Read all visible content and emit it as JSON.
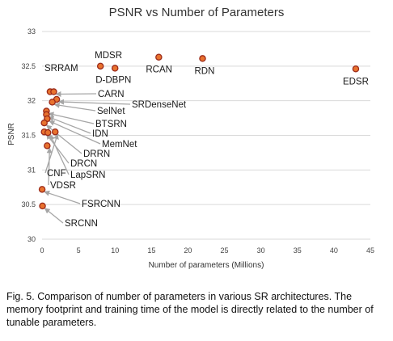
{
  "chart_data": {
    "type": "scatter",
    "title": "PSNR vs Number of Parameters",
    "xlabel": "Number of parameters (Millions)",
    "ylabel": "PSNR",
    "xlim": [
      0,
      45
    ],
    "ylim": [
      30,
      33
    ],
    "xticks": [
      "0",
      "5",
      "10",
      "15",
      "20",
      "25",
      "30",
      "35",
      "40",
      "45"
    ],
    "yticks": [
      "30",
      "30.5",
      "31",
      "31.5",
      "32",
      "32.5",
      "33"
    ],
    "grid": true,
    "marker_fill": "#e8722e",
    "marker_stroke": "#9b2a1a",
    "arrow_color": "#a6a6a6",
    "points": [
      {
        "label": "MDSR",
        "x": 8,
        "y": 32.5
      },
      {
        "label": "D-DBPN",
        "x": 10,
        "y": 32.47
      },
      {
        "label": "RCAN",
        "x": 16,
        "y": 32.63
      },
      {
        "label": "RDN",
        "x": 22,
        "y": 32.61
      },
      {
        "label": "EDSR",
        "x": 43,
        "y": 32.46
      },
      {
        "label": "SRRAM",
        "x": 1.1,
        "y": 32.13
      },
      {
        "label": "CARN",
        "x": 1.6,
        "y": 32.13
      },
      {
        "label": "SRDenseNet",
        "x": 2.0,
        "y": 32.02
      },
      {
        "label": "SelNet",
        "x": 1.4,
        "y": 31.98
      },
      {
        "label": "BTSRN",
        "x": 0.6,
        "y": 31.85
      },
      {
        "label": "IDN",
        "x": 0.6,
        "y": 31.8
      },
      {
        "label": "MemNet",
        "x": 0.7,
        "y": 31.74
      },
      {
        "label": "DRRN",
        "x": 0.3,
        "y": 31.68
      },
      {
        "label": "DRCN",
        "x": 0.3,
        "y": 31.55
      },
      {
        "label": "LapSRN",
        "x": 0.8,
        "y": 31.54
      },
      {
        "label": "CNF",
        "x": 1.8,
        "y": 31.55
      },
      {
        "label": "VDSR",
        "x": 0.7,
        "y": 31.35
      },
      {
        "label": "FSRCNN",
        "x": 0.01,
        "y": 30.72
      },
      {
        "label": "SRCNN",
        "x": 0.06,
        "y": 30.48
      }
    ]
  },
  "caption": "Fig. 5. Comparison of number of parameters in various SR architectures. The memory footprint and training time of the model is directly related to the number of tunable parameters."
}
